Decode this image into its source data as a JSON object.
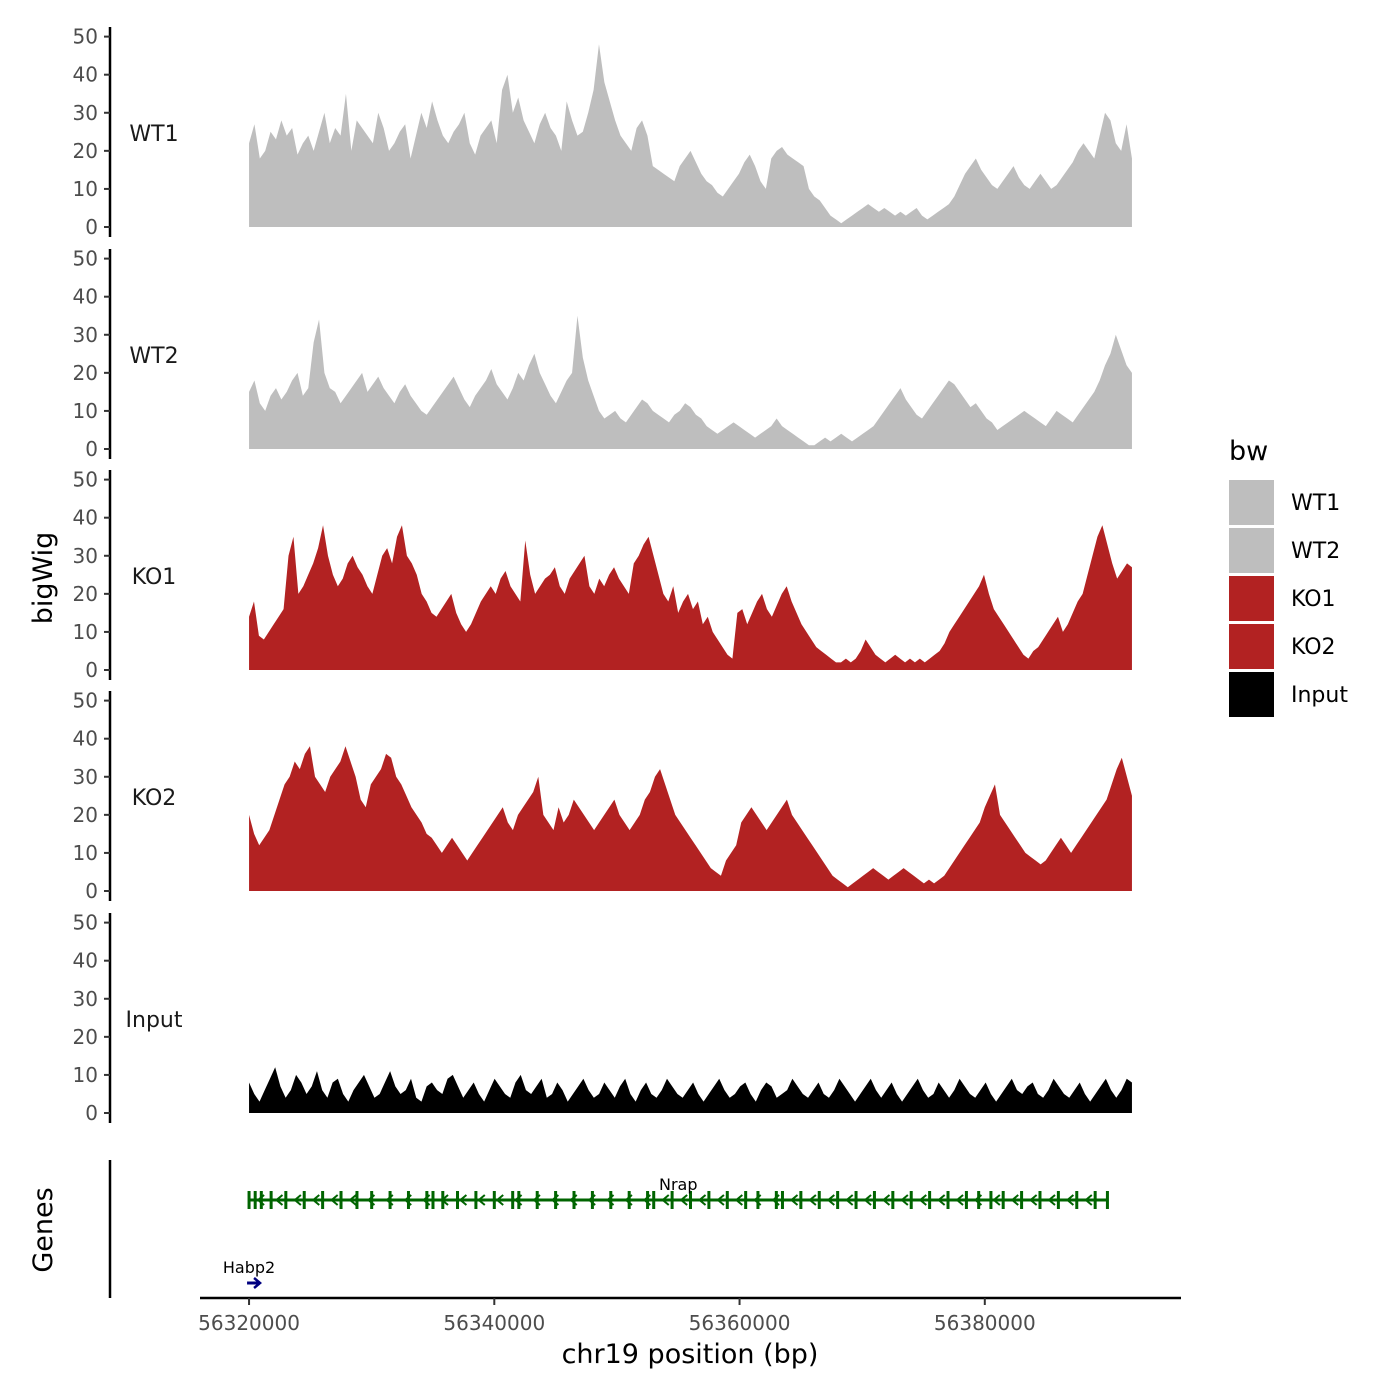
{
  "chart_data": {
    "type": "area",
    "xlabel": "chr19 position (bp)",
    "ylabel": "bigWig",
    "genes_label": "Genes",
    "xlim": [
      56316000,
      56396000
    ],
    "ylim": [
      0,
      52
    ],
    "x_ticks": [
      56320000,
      56340000,
      56360000,
      56380000
    ],
    "x_tick_labels": [
      "56320000",
      "56340000",
      "56360000",
      "56380000"
    ],
    "y_ticks": [
      0,
      10,
      20,
      30,
      40,
      50
    ],
    "y_tick_labels": [
      "0",
      "10",
      "20",
      "30",
      "40",
      "50"
    ],
    "region": [
      56320000,
      56392000
    ],
    "legend": {
      "title": "bw",
      "entries": [
        {
          "label": "WT1",
          "color": "#bebebe"
        },
        {
          "label": "WT2",
          "color": "#bebebe"
        },
        {
          "label": "KO1",
          "color": "#b22222"
        },
        {
          "label": "KO2",
          "color": "#b22222"
        },
        {
          "label": "Input",
          "color": "#000000"
        }
      ]
    },
    "series": [
      {
        "name": "WT1",
        "color": "#bebebe",
        "values": [
          22,
          27,
          18,
          20,
          25,
          23,
          28,
          24,
          26,
          19,
          22,
          24,
          20,
          25,
          30,
          22,
          26,
          24,
          35,
          20,
          28,
          26,
          24,
          22,
          30,
          26,
          20,
          22,
          25,
          27,
          18,
          24,
          30,
          26,
          33,
          28,
          24,
          22,
          25,
          27,
          30,
          22,
          19,
          24,
          26,
          28,
          22,
          36,
          40,
          30,
          34,
          28,
          25,
          22,
          27,
          30,
          26,
          24,
          20,
          33,
          28,
          24,
          25,
          30,
          36,
          48,
          38,
          33,
          28,
          24,
          22,
          20,
          26,
          28,
          24,
          16,
          15,
          14,
          13,
          12,
          16,
          18,
          20,
          17,
          14,
          12,
          11,
          9,
          8,
          10,
          12,
          14,
          17,
          19,
          16,
          12,
          10,
          18,
          20,
          21,
          19,
          18,
          17,
          16,
          10,
          8,
          7,
          5,
          3,
          2,
          1,
          2,
          3,
          4,
          5,
          6,
          5,
          4,
          5,
          4,
          3,
          4,
          3,
          4,
          5,
          3,
          2,
          3,
          4,
          5,
          6,
          8,
          11,
          14,
          16,
          18,
          15,
          13,
          11,
          10,
          12,
          14,
          16,
          13,
          11,
          10,
          12,
          14,
          12,
          10,
          11,
          13,
          15,
          17,
          20,
          22,
          20,
          18,
          24,
          30,
          28,
          22,
          20,
          27,
          18
        ]
      },
      {
        "name": "WT2",
        "color": "#bebebe",
        "values": [
          15,
          18,
          12,
          10,
          14,
          16,
          13,
          15,
          18,
          20,
          14,
          16,
          28,
          34,
          20,
          16,
          15,
          12,
          14,
          16,
          18,
          20,
          15,
          17,
          19,
          16,
          14,
          12,
          15,
          17,
          14,
          12,
          10,
          9,
          11,
          13,
          15,
          17,
          19,
          16,
          13,
          11,
          14,
          16,
          18,
          21,
          17,
          15,
          13,
          16,
          20,
          18,
          22,
          25,
          20,
          17,
          14,
          12,
          15,
          18,
          20,
          35,
          24,
          18,
          14,
          10,
          8,
          9,
          10,
          8,
          7,
          9,
          11,
          13,
          12,
          10,
          9,
          8,
          7,
          9,
          10,
          12,
          11,
          9,
          8,
          6,
          5,
          4,
          5,
          6,
          7,
          6,
          5,
          4,
          3,
          4,
          5,
          6,
          8,
          6,
          5,
          4,
          3,
          2,
          1,
          1,
          2,
          3,
          2,
          3,
          4,
          3,
          2,
          3,
          4,
          5,
          6,
          8,
          10,
          12,
          14,
          16,
          13,
          11,
          9,
          8,
          10,
          12,
          14,
          16,
          18,
          17,
          15,
          13,
          11,
          12,
          10,
          8,
          7,
          5,
          6,
          7,
          8,
          9,
          10,
          9,
          8,
          7,
          6,
          8,
          10,
          9,
          8,
          7,
          9,
          11,
          13,
          15,
          18,
          22,
          25,
          30,
          26,
          22,
          20
        ]
      },
      {
        "name": "KO1",
        "color": "#b22222",
        "values": [
          14,
          18,
          9,
          8,
          10,
          12,
          14,
          16,
          30,
          35,
          20,
          22,
          25,
          28,
          32,
          38,
          30,
          25,
          22,
          24,
          28,
          30,
          27,
          25,
          22,
          20,
          25,
          30,
          32,
          28,
          35,
          38,
          30,
          28,
          25,
          20,
          18,
          15,
          14,
          16,
          18,
          20,
          15,
          12,
          10,
          12,
          15,
          18,
          20,
          22,
          20,
          24,
          26,
          22,
          20,
          18,
          34,
          25,
          20,
          22,
          24,
          25,
          27,
          22,
          20,
          24,
          26,
          28,
          30,
          22,
          20,
          24,
          22,
          25,
          27,
          24,
          22,
          20,
          28,
          30,
          33,
          35,
          30,
          25,
          20,
          18,
          22,
          15,
          18,
          20,
          16,
          18,
          12,
          14,
          10,
          8,
          6,
          4,
          3,
          15,
          16,
          12,
          15,
          18,
          20,
          16,
          14,
          17,
          20,
          22,
          18,
          15,
          12,
          10,
          8,
          6,
          5,
          4,
          3,
          2,
          2,
          3,
          2,
          3,
          5,
          8,
          6,
          4,
          3,
          2,
          3,
          4,
          3,
          2,
          3,
          2,
          3,
          2,
          3,
          4,
          5,
          7,
          10,
          12,
          14,
          16,
          18,
          20,
          22,
          25,
          20,
          16,
          14,
          12,
          10,
          8,
          6,
          4,
          3,
          5,
          6,
          8,
          10,
          12,
          14,
          10,
          12,
          15,
          18,
          20,
          25,
          30,
          35,
          38,
          33,
          28,
          24,
          26,
          28,
          27
        ]
      },
      {
        "name": "KO2",
        "color": "#b22222",
        "values": [
          20,
          15,
          12,
          14,
          16,
          20,
          24,
          28,
          30,
          34,
          32,
          36,
          38,
          30,
          28,
          26,
          30,
          32,
          34,
          38,
          34,
          30,
          24,
          22,
          28,
          30,
          32,
          36,
          35,
          30,
          28,
          25,
          22,
          20,
          18,
          15,
          14,
          12,
          10,
          12,
          14,
          12,
          10,
          8,
          10,
          12,
          14,
          16,
          18,
          20,
          22,
          18,
          16,
          20,
          22,
          24,
          26,
          30,
          20,
          18,
          16,
          22,
          18,
          20,
          24,
          22,
          20,
          18,
          16,
          18,
          20,
          22,
          24,
          20,
          18,
          16,
          18,
          20,
          24,
          26,
          30,
          32,
          28,
          24,
          20,
          18,
          16,
          14,
          12,
          10,
          8,
          6,
          5,
          4,
          8,
          10,
          12,
          18,
          20,
          22,
          20,
          18,
          16,
          18,
          20,
          22,
          24,
          20,
          18,
          16,
          14,
          12,
          10,
          8,
          6,
          4,
          3,
          2,
          1,
          2,
          3,
          4,
          5,
          6,
          5,
          4,
          3,
          4,
          5,
          6,
          5,
          4,
          3,
          2,
          3,
          2,
          3,
          4,
          6,
          8,
          10,
          12,
          14,
          16,
          18,
          22,
          25,
          28,
          20,
          18,
          16,
          14,
          12,
          10,
          9,
          8,
          7,
          8,
          10,
          12,
          14,
          12,
          10,
          12,
          14,
          16,
          18,
          20,
          22,
          24,
          28,
          32,
          35,
          30,
          25
        ]
      },
      {
        "name": "Input",
        "color": "#000000",
        "values": [
          8,
          5,
          3,
          6,
          9,
          12,
          7,
          4,
          6,
          10,
          8,
          5,
          7,
          11,
          6,
          4,
          8,
          9,
          5,
          3,
          6,
          8,
          10,
          7,
          4,
          5,
          8,
          11,
          7,
          5,
          6,
          9,
          4,
          3,
          7,
          8,
          6,
          5,
          9,
          10,
          7,
          4,
          6,
          8,
          5,
          3,
          6,
          9,
          7,
          5,
          4,
          8,
          10,
          6,
          5,
          7,
          9,
          4,
          5,
          8,
          6,
          3,
          5,
          7,
          9,
          6,
          4,
          5,
          8,
          6,
          4,
          7,
          9,
          5,
          3,
          6,
          8,
          5,
          4,
          6,
          9,
          7,
          5,
          4,
          6,
          8,
          5,
          3,
          5,
          7,
          9,
          6,
          4,
          5,
          7,
          8,
          5,
          3,
          6,
          8,
          7,
          4,
          5,
          6,
          9,
          7,
          5,
          4,
          6,
          8,
          5,
          4,
          6,
          9,
          7,
          5,
          3,
          5,
          7,
          9,
          6,
          4,
          6,
          8,
          5,
          3,
          5,
          7,
          9,
          6,
          4,
          5,
          8,
          6,
          4,
          6,
          9,
          7,
          5,
          4,
          6,
          8,
          5,
          3,
          5,
          7,
          9,
          6,
          5,
          7,
          8,
          5,
          4,
          6,
          9,
          7,
          5,
          4,
          6,
          8,
          5,
          3,
          5,
          7,
          9,
          6,
          4,
          6,
          9,
          8
        ]
      }
    ],
    "genes": [
      {
        "name": "Nrap",
        "start": 56320000,
        "end": 56390000,
        "strand": "-",
        "color": "#006400",
        "exons": [
          56320000,
          56320500,
          56321000,
          56321800,
          56323000,
          56324500,
          56326000,
          56327500,
          56328800,
          56330000,
          56331500,
          56333000,
          56334500,
          56335000,
          56335800,
          56337000,
          56338500,
          56340000,
          56341500,
          56342000,
          56343500,
          56345000,
          56346500,
          56348000,
          56349500,
          56351000,
          56352500,
          56353000,
          56354500,
          56356000,
          56357500,
          56359000,
          56360500,
          56361500,
          56363000,
          56363500,
          56365000,
          56366500,
          56368000,
          56369500,
          56371000,
          56372500,
          56374000,
          56375500,
          56377000,
          56378500,
          56379500,
          56380500,
          56381500,
          56383000,
          56384500,
          56386000,
          56387500,
          56389000,
          56390000
        ]
      },
      {
        "name": "Habp2",
        "start": 56320000,
        "end": 56320600,
        "strand": "+",
        "color": "#000080",
        "exons": []
      }
    ]
  }
}
